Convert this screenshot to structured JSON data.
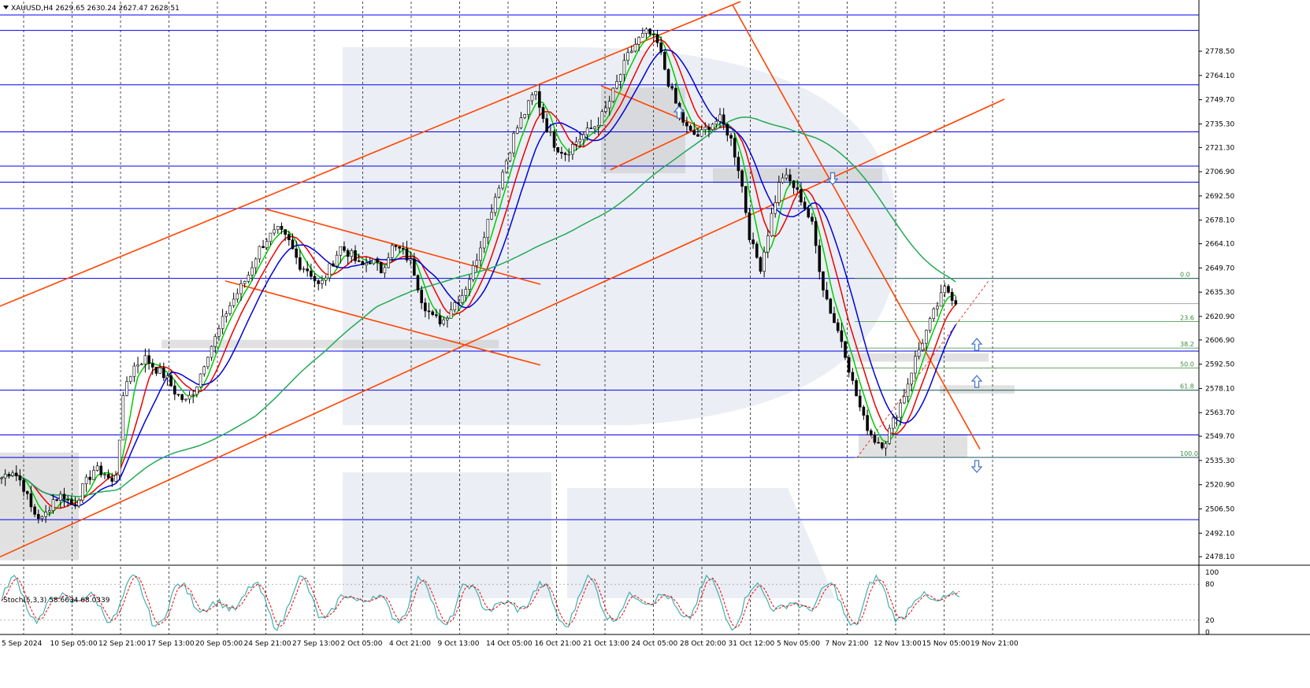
{
  "header": {
    "main_title": "XAUUSD,H4  2629.65 2630.24 2627.47 2628.51",
    "stoch_title": "Stoch(5,3,3) 58.6634 68.0339"
  },
  "colors": {
    "level": "#0000ee",
    "trend": "#ff4400",
    "ma_fast": "#00cc00",
    "ma_mid": "#ee0000",
    "ma_slow": "#0000dd",
    "ma_200": "#22aa55",
    "candle": "#000000",
    "grey_zone": "#c8c8c8",
    "stoch_main": "#40b0b0",
    "stoch_signal": "#ee0000",
    "fib": "#3a8a3a",
    "arrow": "#4477cc"
  },
  "chart_data": {
    "type": "candlestick",
    "symbol": "XAUUSD",
    "timeframe": "H4",
    "ohlc_last": {
      "open": 2629.65,
      "high": 2630.24,
      "low": 2627.47,
      "close": 2628.51
    },
    "ylim": [
      2474,
      2808
    ],
    "price_ticks": [
      "2778.50",
      "2764.10",
      "2749.70",
      "2735.30",
      "2721.30",
      "2706.90",
      "2692.50",
      "2678.10",
      "2664.10",
      "2649.70",
      "2635.30",
      "2620.90",
      "2606.90",
      "2592.50",
      "2578.10",
      "2563.70",
      "2549.70",
      "2535.30",
      "2520.90",
      "2506.50",
      "2492.10",
      "2478.10"
    ],
    "levels": [
      {
        "price": 2800.02,
        "label": "2800.02"
      },
      {
        "price": 2790.86,
        "label": "2790.86"
      },
      {
        "price": 2758.55,
        "label": "2758.55"
      },
      {
        "price": 2730.57,
        "label": "2730.57"
      },
      {
        "price": 2710.23,
        "label": "2710.23"
      },
      {
        "price": 2700.68,
        "label": "2700.68"
      },
      {
        "price": 2685.01,
        "label": "2685.01"
      },
      {
        "price": 2643.49,
        "label": "2643.49"
      },
      {
        "price": 2600.3,
        "label": "2600.30"
      },
      {
        "price": 2577.07,
        "label": "2577.07"
      },
      {
        "price": 2550.49,
        "label": "2550.49"
      },
      {
        "price": 2537.08,
        "label": "2537.08"
      },
      {
        "price": 2500.11,
        "label": "2500.11"
      }
    ],
    "current_price": {
      "price": 2628.51,
      "label": "2628.51"
    },
    "fib_levels": [
      {
        "pct": "0.0",
        "price": 2643.49
      },
      {
        "pct": "23.6",
        "price": 2617.8
      },
      {
        "pct": "38.2",
        "price": 2602.1
      },
      {
        "pct": "50.0",
        "price": 2590.3
      },
      {
        "pct": "61.8",
        "price": 2577.07
      },
      {
        "pct": "100.0",
        "price": 2537.08
      }
    ],
    "time_labels": [
      "5 Sep 2024",
      "10 Sep 05:00",
      "12 Sep 21:00",
      "17 Sep 13:00",
      "20 Sep 05:00",
      "24 Sep 21:00",
      "27 Sep 13:00",
      "2 Oct 05:00",
      "4 Oct 21:00",
      "9 Oct 13:00",
      "14 Oct 05:00",
      "16 Oct 21:00",
      "21 Oct 13:00",
      "24 Oct 05:00",
      "28 Oct 20:00",
      "31 Oct 12:00",
      "5 Nov 05:00",
      "7 Nov 21:00",
      "12 Nov 13:00",
      "15 Nov 05:00",
      "19 Nov 21:00"
    ],
    "close_path": [
      2525,
      2530,
      2522,
      2505,
      2500,
      2512,
      2515,
      2508,
      2520,
      2530,
      2528,
      2520,
      2580,
      2592,
      2596,
      2590,
      2585,
      2575,
      2570,
      2580,
      2598,
      2610,
      2625,
      2635,
      2645,
      2660,
      2668,
      2672,
      2665,
      2652,
      2648,
      2638,
      2650,
      2662,
      2658,
      2650,
      2655,
      2648,
      2662,
      2660,
      2652,
      2630,
      2620,
      2618,
      2628,
      2635,
      2650,
      2670,
      2690,
      2710,
      2730,
      2742,
      2755,
      2735,
      2722,
      2718,
      2725,
      2730,
      2735,
      2745,
      2760,
      2775,
      2785,
      2790,
      2782,
      2760,
      2742,
      2730,
      2728,
      2735,
      2738,
      2728,
      2705,
      2665,
      2650,
      2680,
      2705,
      2700,
      2690,
      2675,
      2640,
      2620,
      2605,
      2580,
      2560,
      2548,
      2545,
      2560,
      2575,
      2595,
      2610,
      2625,
      2638,
      2630
    ],
    "stochastic": {
      "k_period": 5,
      "d_period": 3,
      "slowing": 3,
      "main": 58.6634,
      "signal": 68.0339,
      "ylim": [
        0,
        100
      ],
      "ticks": [
        "100",
        "80",
        "20",
        "0"
      ]
    }
  }
}
